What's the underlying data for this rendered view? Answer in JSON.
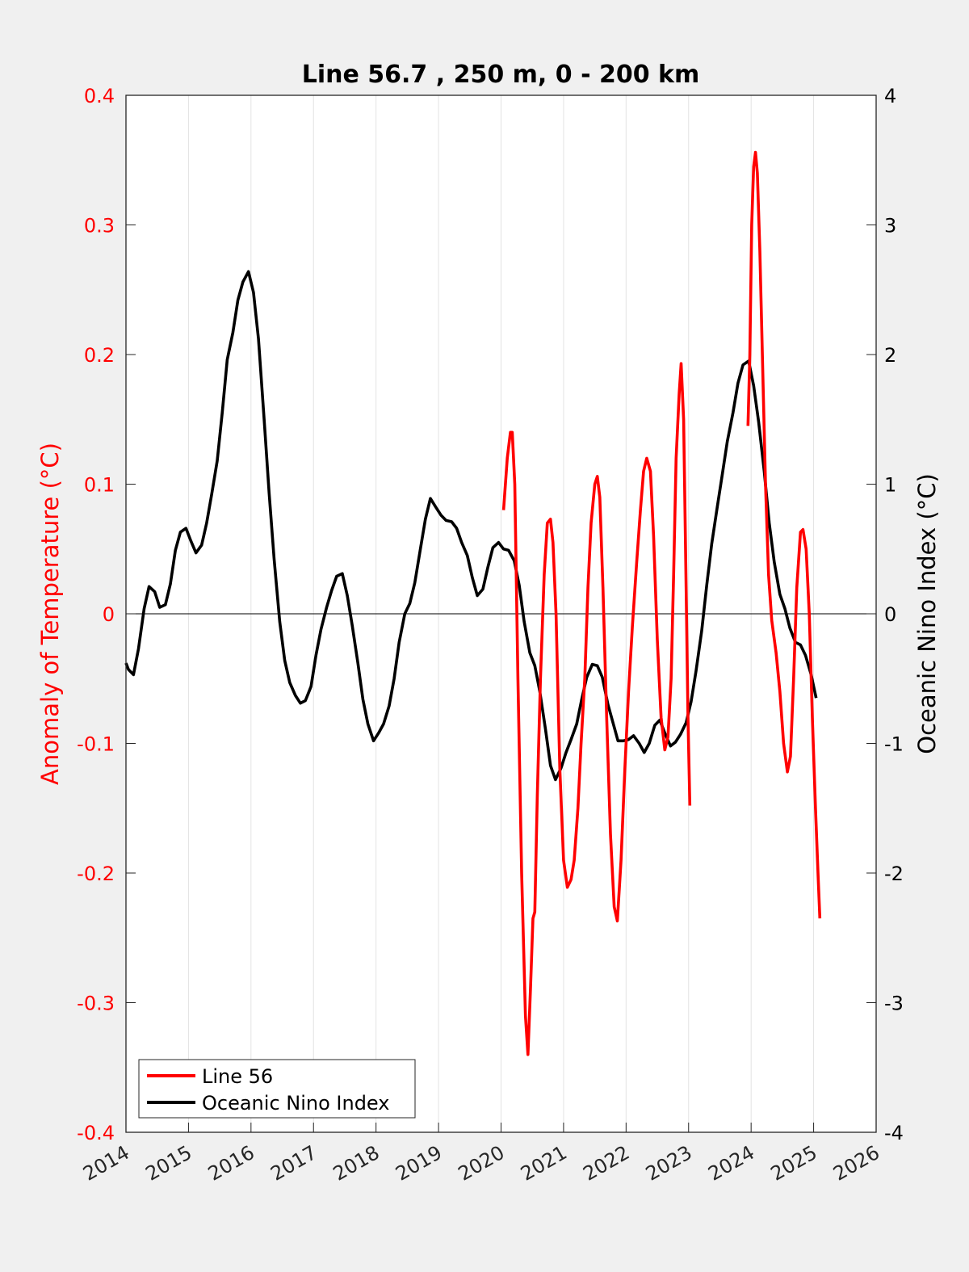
{
  "chart_data": {
    "type": "line",
    "title": "Line 56.7 , 250 m, 0 - 200 km",
    "xlabel": "",
    "ylabel_left": "Anomaly of Temperature (°C)",
    "ylabel_right": "Oceanic Nino Index (°C)",
    "xlim": [
      2014,
      2026
    ],
    "ylim_left": [
      -0.4,
      0.4
    ],
    "ylim_right": [
      -4,
      4
    ],
    "x_ticks": [
      "2014",
      "2015",
      "2016",
      "2017",
      "2018",
      "2019",
      "2020",
      "2021",
      "2022",
      "2023",
      "2024",
      "2025",
      "2026"
    ],
    "y_ticks_left": [
      "-0.4",
      "-0.3",
      "-0.2",
      "-0.1",
      "0",
      "0.1",
      "0.2",
      "0.3",
      "0.4"
    ],
    "y_ticks_right": [
      "-4",
      "-3",
      "-2",
      "-1",
      "0",
      "1",
      "2",
      "3",
      "4"
    ],
    "grid": "vertical",
    "legend_position": "bottom-left",
    "series": [
      {
        "name": "Line 56",
        "axis": "left",
        "color": "#ff0000",
        "segments": [
          [
            [
              2020.04,
              0.08
            ],
            [
              2020.1,
              0.12
            ],
            [
              2020.15,
              0.14
            ],
            [
              2020.18,
              0.14
            ],
            [
              2020.22,
              0.1
            ],
            [
              2020.27,
              -0.05
            ],
            [
              2020.33,
              -0.2
            ],
            [
              2020.39,
              -0.31
            ],
            [
              2020.43,
              -0.34
            ],
            [
              2020.47,
              -0.29
            ],
            [
              2020.51,
              -0.235
            ],
            [
              2020.54,
              -0.23
            ],
            [
              2020.58,
              -0.14
            ],
            [
              2020.63,
              -0.05
            ],
            [
              2020.69,
              0.03
            ],
            [
              2020.74,
              0.07
            ],
            [
              2020.79,
              0.073
            ],
            [
              2020.83,
              0.055
            ],
            [
              2020.88,
              0.0
            ],
            [
              2020.94,
              -0.12
            ],
            [
              2021.0,
              -0.19
            ],
            [
              2021.06,
              -0.211
            ],
            [
              2021.12,
              -0.205
            ],
            [
              2021.17,
              -0.19
            ],
            [
              2021.23,
              -0.15
            ],
            [
              2021.28,
              -0.1
            ],
            [
              2021.34,
              -0.05
            ],
            [
              2021.39,
              0.02
            ],
            [
              2021.44,
              0.07
            ],
            [
              2021.5,
              0.1
            ],
            [
              2021.54,
              0.106
            ],
            [
              2021.58,
              0.09
            ],
            [
              2021.63,
              0.02
            ],
            [
              2021.69,
              -0.08
            ],
            [
              2021.75,
              -0.17
            ],
            [
              2021.81,
              -0.226
            ],
            [
              2021.86,
              -0.237
            ],
            [
              2021.92,
              -0.19
            ],
            [
              2021.98,
              -0.12
            ],
            [
              2022.04,
              -0.06
            ],
            [
              2022.1,
              -0.01
            ],
            [
              2022.17,
              0.04
            ],
            [
              2022.23,
              0.08
            ],
            [
              2022.28,
              0.11
            ],
            [
              2022.33,
              0.12
            ],
            [
              2022.39,
              0.11
            ],
            [
              2022.44,
              0.06
            ],
            [
              2022.5,
              -0.02
            ],
            [
              2022.56,
              -0.08
            ],
            [
              2022.62,
              -0.105
            ],
            [
              2022.67,
              -0.095
            ],
            [
              2022.72,
              -0.05
            ],
            [
              2022.76,
              0.03
            ],
            [
              2022.8,
              0.12
            ],
            [
              2022.85,
              0.17
            ],
            [
              2022.88,
              0.193
            ],
            [
              2022.92,
              0.15
            ],
            [
              2022.96,
              0.02
            ],
            [
              2022.99,
              -0.08
            ],
            [
              2023.02,
              -0.148
            ]
          ],
          [
            [
              2023.95,
              0.145
            ],
            [
              2023.98,
              0.2
            ],
            [
              2024.01,
              0.3
            ],
            [
              2024.04,
              0.345
            ],
            [
              2024.07,
              0.356
            ],
            [
              2024.1,
              0.34
            ],
            [
              2024.14,
              0.28
            ],
            [
              2024.18,
              0.2
            ],
            [
              2024.23,
              0.1
            ],
            [
              2024.28,
              0.03
            ],
            [
              2024.33,
              -0.005
            ],
            [
              2024.4,
              -0.03
            ],
            [
              2024.46,
              -0.06
            ],
            [
              2024.52,
              -0.1
            ],
            [
              2024.58,
              -0.122
            ],
            [
              2024.63,
              -0.11
            ],
            [
              2024.68,
              -0.05
            ],
            [
              2024.73,
              0.02
            ],
            [
              2024.79,
              0.063
            ],
            [
              2024.83,
              0.065
            ],
            [
              2024.88,
              0.05
            ],
            [
              2024.93,
              0.0
            ],
            [
              2024.98,
              -0.08
            ],
            [
              2025.03,
              -0.15
            ],
            [
              2025.07,
              -0.2
            ],
            [
              2025.1,
              -0.235
            ]
          ]
        ]
      },
      {
        "name": "Oceanic Nino Index",
        "axis": "right",
        "color": "#000000",
        "segments": [
          [
            [
              2014.0,
              -0.38
            ],
            [
              2014.04,
              -0.43
            ],
            [
              2014.12,
              -0.47
            ],
            [
              2014.2,
              -0.27
            ],
            [
              2014.29,
              0.04
            ],
            [
              2014.37,
              0.21
            ],
            [
              2014.46,
              0.17
            ],
            [
              2014.54,
              0.05
            ],
            [
              2014.63,
              0.07
            ],
            [
              2014.71,
              0.23
            ],
            [
              2014.79,
              0.49
            ],
            [
              2014.87,
              0.63
            ],
            [
              2014.96,
              0.66
            ],
            [
              2015.04,
              0.56
            ],
            [
              2015.12,
              0.47
            ],
            [
              2015.21,
              0.53
            ],
            [
              2015.29,
              0.7
            ],
            [
              2015.37,
              0.92
            ],
            [
              2015.46,
              1.18
            ],
            [
              2015.54,
              1.55
            ],
            [
              2015.62,
              1.96
            ],
            [
              2015.71,
              2.17
            ],
            [
              2015.79,
              2.42
            ],
            [
              2015.87,
              2.56
            ],
            [
              2015.96,
              2.64
            ],
            [
              2016.04,
              2.48
            ],
            [
              2016.12,
              2.12
            ],
            [
              2016.21,
              1.5
            ],
            [
              2016.29,
              0.93
            ],
            [
              2016.37,
              0.42
            ],
            [
              2016.46,
              -0.06
            ],
            [
              2016.54,
              -0.36
            ],
            [
              2016.62,
              -0.53
            ],
            [
              2016.71,
              -0.63
            ],
            [
              2016.79,
              -0.69
            ],
            [
              2016.87,
              -0.67
            ],
            [
              2016.96,
              -0.56
            ],
            [
              2017.04,
              -0.32
            ],
            [
              2017.12,
              -0.12
            ],
            [
              2017.21,
              0.05
            ],
            [
              2017.29,
              0.18
            ],
            [
              2017.37,
              0.29
            ],
            [
              2017.46,
              0.31
            ],
            [
              2017.54,
              0.14
            ],
            [
              2017.62,
              -0.09
            ],
            [
              2017.71,
              -0.38
            ],
            [
              2017.79,
              -0.66
            ],
            [
              2017.87,
              -0.85
            ],
            [
              2017.96,
              -0.98
            ],
            [
              2018.04,
              -0.92
            ],
            [
              2018.12,
              -0.85
            ],
            [
              2018.21,
              -0.71
            ],
            [
              2018.29,
              -0.5
            ],
            [
              2018.37,
              -0.22
            ],
            [
              2018.46,
              0.0
            ],
            [
              2018.54,
              0.08
            ],
            [
              2018.62,
              0.24
            ],
            [
              2018.71,
              0.5
            ],
            [
              2018.79,
              0.73
            ],
            [
              2018.87,
              0.89
            ],
            [
              2018.96,
              0.82
            ],
            [
              2019.04,
              0.76
            ],
            [
              2019.12,
              0.72
            ],
            [
              2019.21,
              0.71
            ],
            [
              2019.29,
              0.66
            ],
            [
              2019.37,
              0.55
            ],
            [
              2019.46,
              0.45
            ],
            [
              2019.54,
              0.28
            ],
            [
              2019.62,
              0.14
            ],
            [
              2019.71,
              0.19
            ],
            [
              2019.79,
              0.36
            ],
            [
              2019.87,
              0.51
            ],
            [
              2019.96,
              0.55
            ],
            [
              2020.04,
              0.5
            ],
            [
              2020.12,
              0.49
            ],
            [
              2020.21,
              0.41
            ],
            [
              2020.29,
              0.22
            ],
            [
              2020.37,
              -0.06
            ],
            [
              2020.46,
              -0.3
            ],
            [
              2020.54,
              -0.4
            ],
            [
              2020.62,
              -0.6
            ],
            [
              2020.71,
              -0.89
            ],
            [
              2020.79,
              -1.17
            ],
            [
              2020.87,
              -1.28
            ],
            [
              2020.96,
              -1.19
            ],
            [
              2021.04,
              -1.07
            ],
            [
              2021.12,
              -0.97
            ],
            [
              2021.21,
              -0.85
            ],
            [
              2021.29,
              -0.66
            ],
            [
              2021.37,
              -0.49
            ],
            [
              2021.46,
              -0.39
            ],
            [
              2021.54,
              -0.4
            ],
            [
              2021.62,
              -0.49
            ],
            [
              2021.71,
              -0.7
            ],
            [
              2021.79,
              -0.84
            ],
            [
              2021.87,
              -0.98
            ],
            [
              2021.96,
              -0.98
            ],
            [
              2022.04,
              -0.97
            ],
            [
              2022.12,
              -0.94
            ],
            [
              2022.21,
              -1.0
            ],
            [
              2022.29,
              -1.07
            ],
            [
              2022.37,
              -1.0
            ],
            [
              2022.46,
              -0.86
            ],
            [
              2022.54,
              -0.82
            ],
            [
              2022.62,
              -0.92
            ],
            [
              2022.71,
              -1.02
            ],
            [
              2022.79,
              -0.99
            ],
            [
              2022.87,
              -0.93
            ],
            [
              2022.96,
              -0.84
            ],
            [
              2023.04,
              -0.68
            ],
            [
              2023.12,
              -0.44
            ],
            [
              2023.21,
              -0.13
            ],
            [
              2023.29,
              0.22
            ],
            [
              2023.37,
              0.54
            ],
            [
              2023.46,
              0.83
            ],
            [
              2023.54,
              1.08
            ],
            [
              2023.62,
              1.33
            ],
            [
              2023.71,
              1.55
            ],
            [
              2023.79,
              1.78
            ],
            [
              2023.87,
              1.92
            ],
            [
              2023.96,
              1.95
            ],
            [
              2024.04,
              1.76
            ],
            [
              2024.12,
              1.48
            ],
            [
              2024.21,
              1.1
            ],
            [
              2024.29,
              0.7
            ],
            [
              2024.37,
              0.4
            ],
            [
              2024.46,
              0.15
            ],
            [
              2024.54,
              0.04
            ],
            [
              2024.62,
              -0.11
            ],
            [
              2024.71,
              -0.22
            ],
            [
              2024.79,
              -0.24
            ],
            [
              2024.87,
              -0.32
            ],
            [
              2024.96,
              -0.47
            ],
            [
              2025.04,
              -0.65
            ]
          ]
        ]
      }
    ]
  }
}
